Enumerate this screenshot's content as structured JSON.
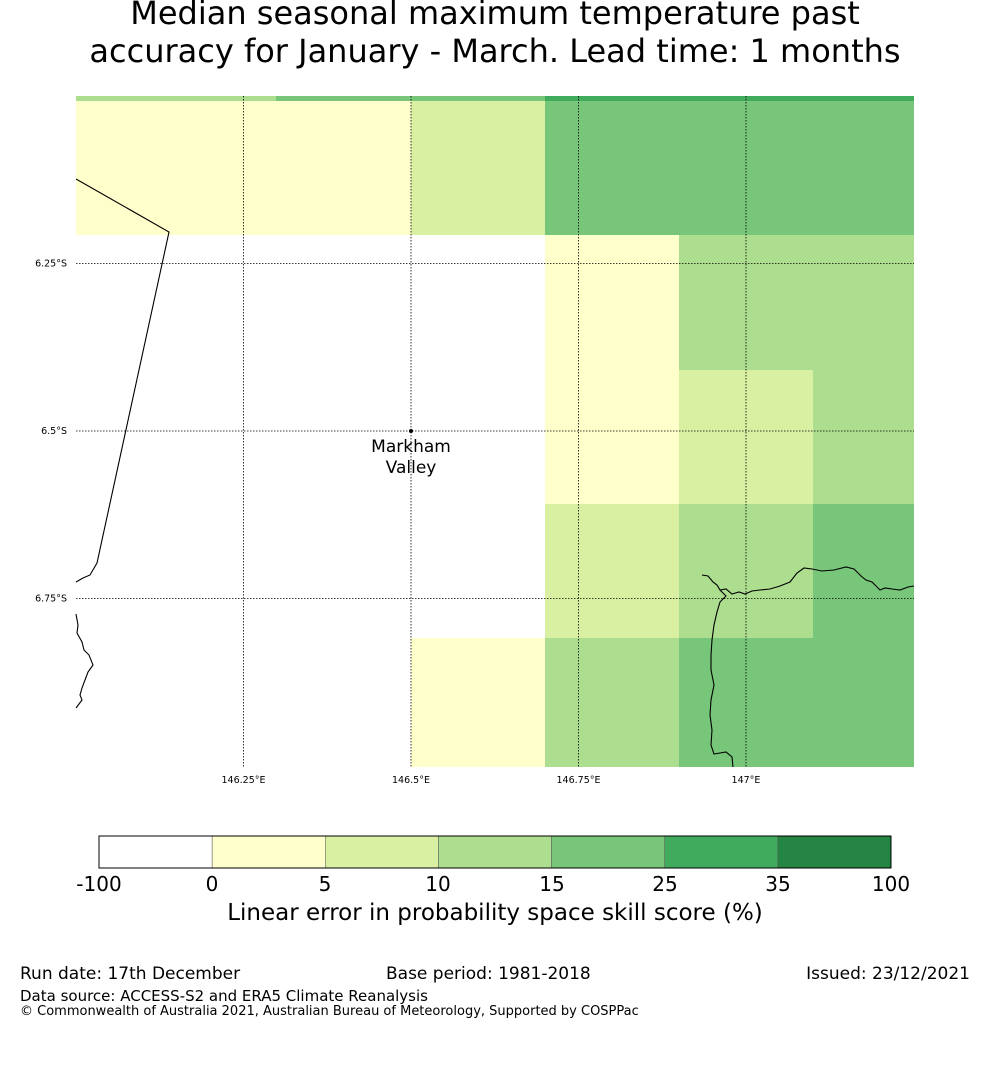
{
  "title": {
    "line1": "Median seasonal maximum temperature past",
    "line2": "accuracy for January - March. Lead time: 1 months"
  },
  "map": {
    "lon_labels": [
      "146.25°E",
      "146.5°E",
      "146.75°E",
      "147°E"
    ],
    "lat_labels": [
      "6.25°S",
      "6.5°S",
      "6.75°S"
    ],
    "location": {
      "name_line1": "Markham",
      "name_line2": "Valley"
    }
  },
  "colorbar": {
    "label": "Linear error in probability space skill score (%)",
    "ticks": [
      "-100",
      "0",
      "5",
      "10",
      "15",
      "25",
      "35",
      "100"
    ],
    "colors": [
      "#ffffff",
      "#ffffcc",
      "#d9f0a3",
      "#addd8e",
      "#78c679",
      "#41ab5d",
      "#238443"
    ]
  },
  "footer": {
    "run_date": "Run date: 17th December",
    "base_period": "Base period: 1981-2018",
    "issued": "Issued: 23/12/2021",
    "data_source": "Data source: ACCESS-S2 and ERA5 Climate Reanalysis",
    "copyright": "© Commonwealth of Australia 2021, Australian Bureau of Meteorology, Supported by COSPPac"
  }
}
